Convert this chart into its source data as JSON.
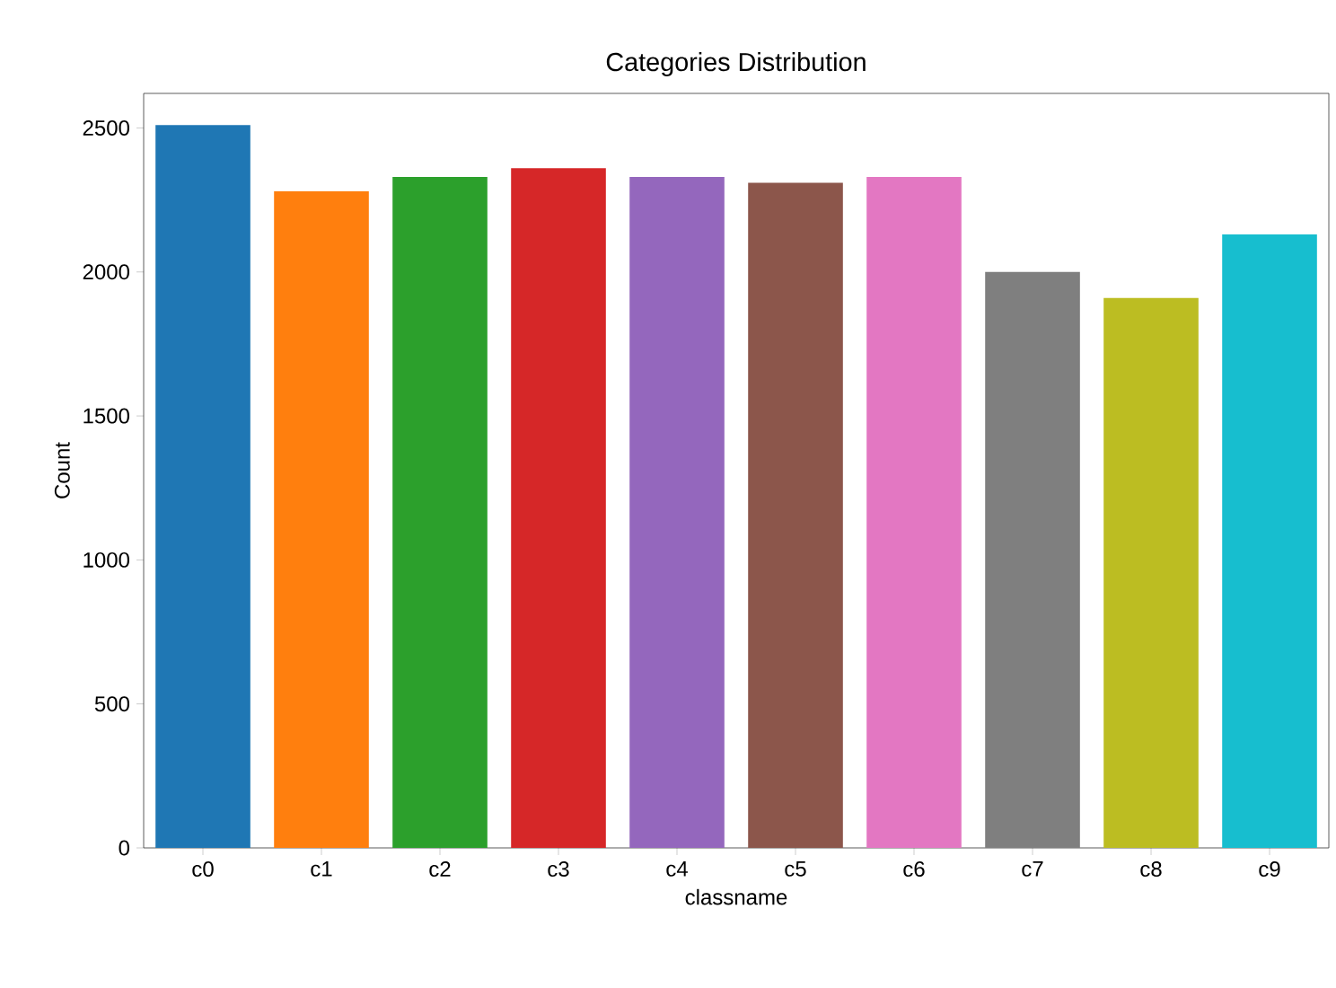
{
  "chart_data": {
    "type": "bar",
    "title": "Categories Distribution",
    "xlabel": "classname",
    "ylabel": "Count",
    "categories": [
      "c0",
      "c1",
      "c2",
      "c3",
      "c4",
      "c5",
      "c6",
      "c7",
      "c8",
      "c9"
    ],
    "values": [
      2510,
      2280,
      2330,
      2360,
      2330,
      2310,
      2330,
      2000,
      1910,
      2130
    ],
    "colors": [
      "#1f77b4",
      "#ff7f0e",
      "#2ca02c",
      "#d62728",
      "#9467bd",
      "#8c564b",
      "#e377c2",
      "#7f7f7f",
      "#bcbd22",
      "#17becf"
    ],
    "ylim": [
      0,
      2620
    ],
    "yticks": [
      0,
      500,
      1000,
      1500,
      2000,
      2500
    ]
  }
}
